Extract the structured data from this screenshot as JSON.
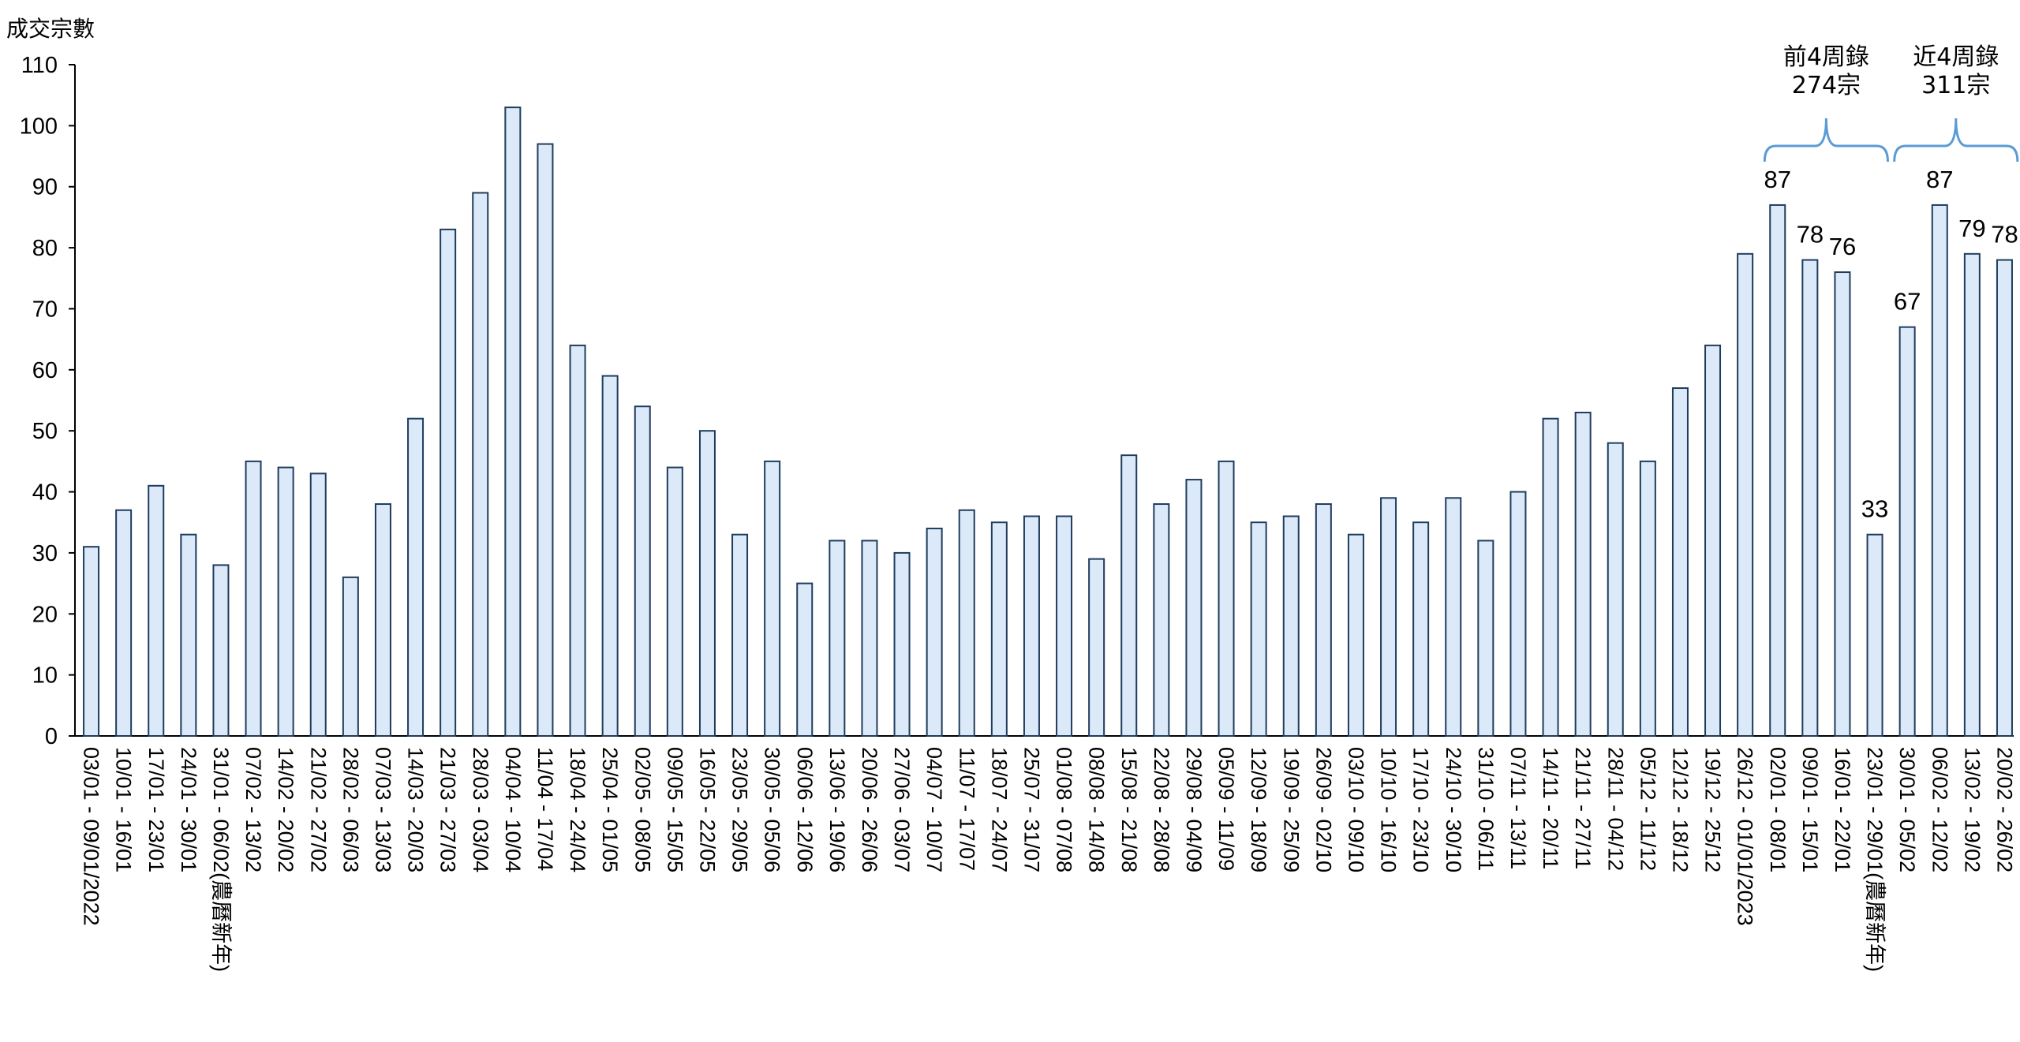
{
  "chart_data": {
    "type": "bar",
    "ylabel": "成交宗數",
    "ylim": [
      0,
      110
    ],
    "yticks": [
      0,
      10,
      20,
      30,
      40,
      50,
      60,
      70,
      80,
      90,
      100,
      110
    ],
    "grid": false,
    "categories": [
      "03/01 - 09/01/2022",
      "10/01 - 16/01",
      "17/01 - 23/01",
      "24/01 - 30/01",
      "31/01 - 06/02(農曆新年)",
      "07/02 - 13/02",
      "14/02 - 20/02",
      "21/02 - 27/02",
      "28/02 - 06/03",
      "07/03 - 13/03",
      "14/03 - 20/03",
      "21/03 - 27/03",
      "28/03 - 03/04",
      "04/04 - 10/04",
      "11/04 - 17/04",
      "18/04 - 24/04",
      "25/04 - 01/05",
      "02/05 - 08/05",
      "09/05 - 15/05",
      "16/05 - 22/05",
      "23/05 - 29/05",
      "30/05 - 05/06",
      "06/06 - 12/06",
      "13/06 - 19/06",
      "20/06 - 26/06",
      "27/06 - 03/07",
      "04/07 - 10/07",
      "11/07 - 17/07",
      "18/07 - 24/07",
      "25/07 - 31/07",
      "01/08 - 07/08",
      "08/08 - 14/08",
      "15/08 - 21/08",
      "22/08 - 28/08",
      "29/08 - 04/09",
      "05/09 - 11/09",
      "12/09 - 18/09",
      "19/09 - 25/09",
      "26/09 - 02/10",
      "03/10 - 09/10",
      "10/10 - 16/10",
      "17/10 - 23/10",
      "24/10 - 30/10",
      "31/10 - 06/11",
      "07/11 - 13/11",
      "14/11 - 20/11",
      "21/11 - 27/11",
      "28/11 - 04/12",
      "05/12 - 11/12",
      "12/12 - 18/12",
      "19/12 - 25/12",
      "26/12 - 01/01/2023",
      "02/01 - 08/01",
      "09/01 - 15/01",
      "16/01 - 22/01",
      "23/01 - 29/01(農曆新年)",
      "30/01 - 05/02",
      "06/02 - 12/02",
      "13/02 - 19/02",
      "20/02 - 26/02"
    ],
    "values": [
      31,
      37,
      41,
      33,
      28,
      45,
      44,
      43,
      26,
      38,
      52,
      83,
      89,
      103,
      97,
      64,
      59,
      54,
      44,
      50,
      33,
      45,
      25,
      32,
      32,
      30,
      34,
      37,
      35,
      36,
      36,
      29,
      46,
      38,
      42,
      45,
      35,
      36,
      38,
      33,
      39,
      35,
      39,
      32,
      40,
      52,
      53,
      48,
      45,
      57,
      64,
      79,
      87,
      78,
      76,
      33,
      67,
      87,
      79,
      78
    ],
    "labeled_indices": [
      52,
      53,
      54,
      55,
      56,
      57,
      58,
      59
    ],
    "annotations": [
      {
        "line1": "前4周錄",
        "line2": "274宗",
        "start_index": 52,
        "end_index": 55
      },
      {
        "line1": "近4周錄",
        "line2": "311宗",
        "start_index": 56,
        "end_index": 59
      }
    ],
    "colors": {
      "bar_fill": "#dce9f8",
      "bar_edge": "#1f3c5e",
      "brace": "#5b9bd5"
    }
  }
}
